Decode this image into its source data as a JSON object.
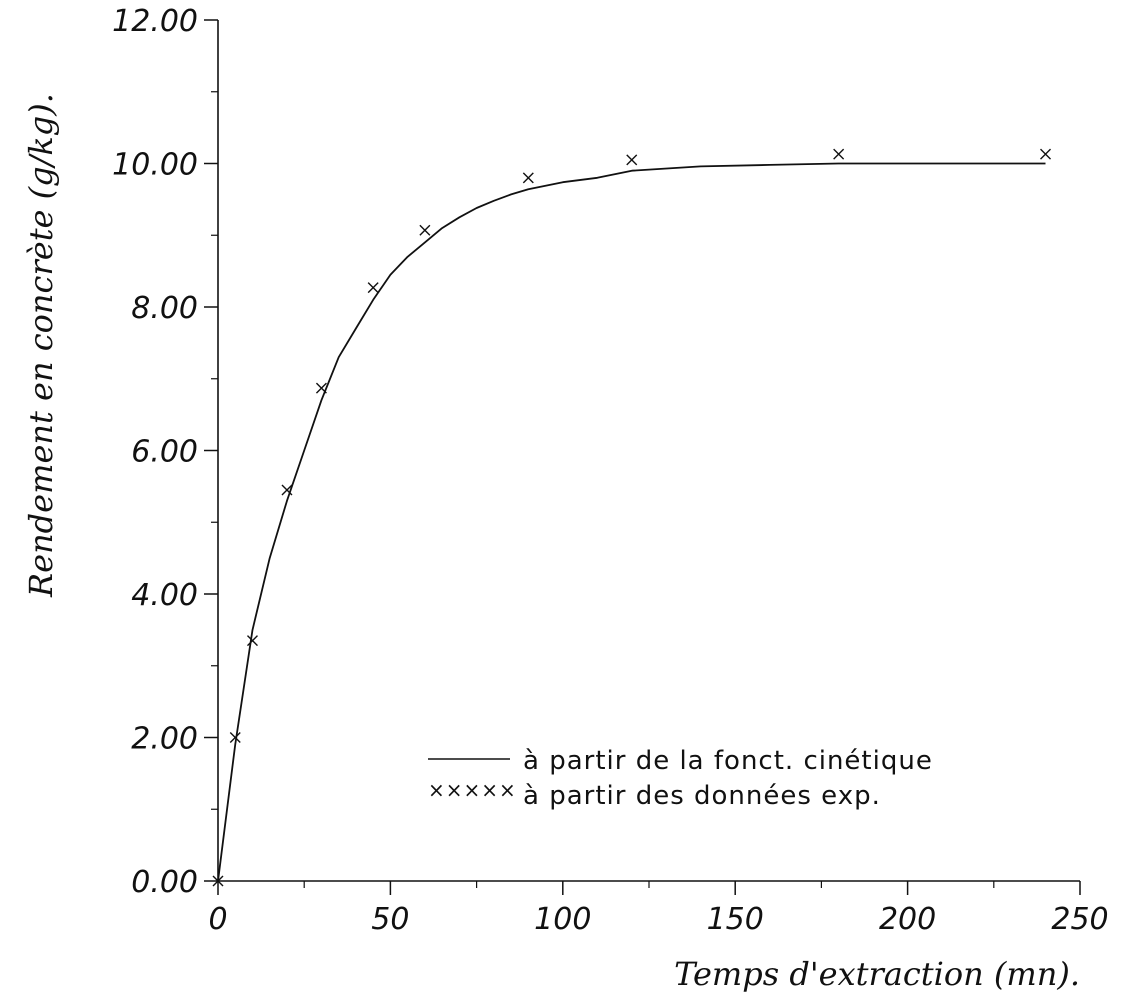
{
  "chart_data": {
    "type": "line",
    "title": "",
    "xlabel": "Temps d'extraction (mn).",
    "ylabel": "Rendement en concrète (g/kg).",
    "xlim": [
      0,
      250
    ],
    "ylim": [
      0,
      12
    ],
    "x_ticks": [
      "0",
      "50",
      "100",
      "150",
      "200",
      "250"
    ],
    "y_ticks": [
      "0.00",
      "2.00",
      "4.00",
      "6.00",
      "8.00",
      "10.00",
      "12.00"
    ],
    "grid": false,
    "legend_position": "lower-right",
    "series": [
      {
        "name": "à partir de la fonct. cinétique",
        "style": "line",
        "x": [
          0,
          5,
          10,
          15,
          20,
          25,
          30,
          35,
          40,
          45,
          50,
          55,
          60,
          65,
          70,
          75,
          80,
          85,
          90,
          100,
          110,
          120,
          140,
          160,
          180,
          200,
          220,
          240
        ],
        "y": [
          0.0,
          1.9,
          3.5,
          4.5,
          5.3,
          6.0,
          6.7,
          7.3,
          7.7,
          8.1,
          8.45,
          8.7,
          8.9,
          9.1,
          9.25,
          9.38,
          9.48,
          9.57,
          9.64,
          9.74,
          9.8,
          9.9,
          9.96,
          9.98,
          10.0,
          10.0,
          10.0,
          10.0
        ]
      },
      {
        "name": "à partir des données exp.",
        "style": "marker-x",
        "x": [
          0,
          5,
          10,
          20,
          30,
          45,
          60,
          90,
          120,
          180,
          240
        ],
        "y": [
          0.0,
          2.0,
          3.35,
          5.45,
          6.87,
          8.27,
          9.07,
          9.8,
          10.05,
          10.13,
          10.13
        ]
      }
    ]
  }
}
